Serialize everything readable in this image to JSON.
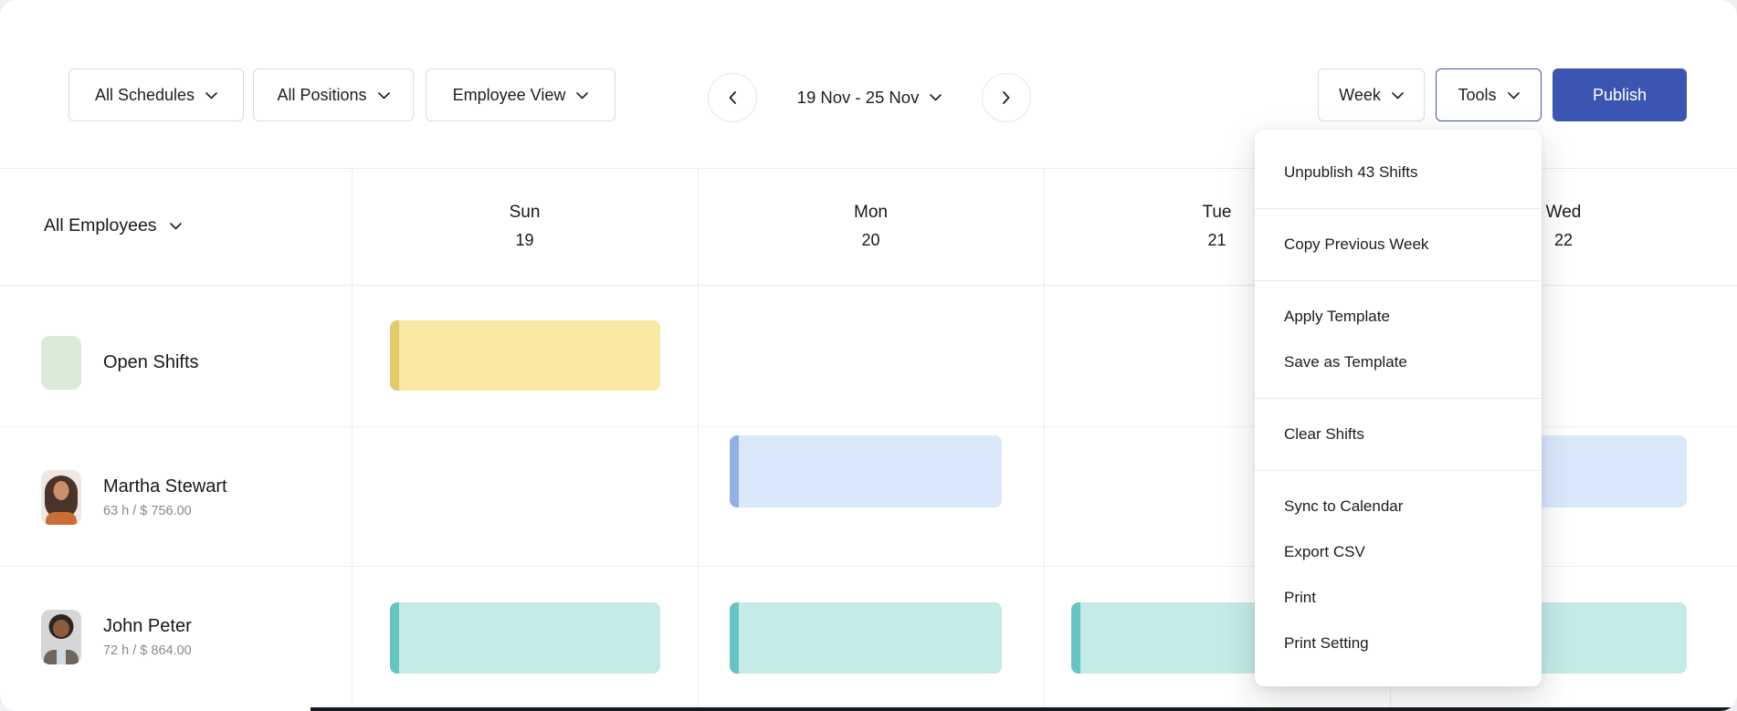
{
  "toolbar": {
    "filters": [
      {
        "id": "schedules",
        "label": "All Schedules"
      },
      {
        "id": "positions",
        "label": "All Positions"
      },
      {
        "id": "view",
        "label": "Employee View"
      }
    ],
    "date_range": "19 Nov - 25 Nov",
    "view_mode": "Week",
    "tools_label": "Tools",
    "publish_label": "Publish"
  },
  "tools_menu": {
    "groups": [
      {
        "items": [
          "Unpublish 43 Shifts"
        ]
      },
      {
        "items": [
          "Copy Previous Week"
        ]
      },
      {
        "items": [
          "Apply Template",
          "Save as Template"
        ]
      },
      {
        "items": [
          "Clear Shifts"
        ]
      },
      {
        "items": [
          "Sync to Calendar",
          "Export CSV",
          "Print",
          "Print Setting"
        ]
      }
    ]
  },
  "grid": {
    "employees_header": "All Employees",
    "days": [
      {
        "name": "Sun",
        "date": "19"
      },
      {
        "name": "Mon",
        "date": "20"
      },
      {
        "name": "Tue",
        "date": "21"
      },
      {
        "name": "Wed",
        "date": "22"
      }
    ],
    "rows": [
      {
        "name": "Open Shifts",
        "meta": "",
        "avatar": "green-tile",
        "shifts": [
          {
            "day": 0,
            "color": "yellow"
          }
        ]
      },
      {
        "name": "Martha Stewart",
        "meta": "63 h / $ 756.00",
        "avatar": "photo-woman",
        "shifts": [
          {
            "day": 1,
            "color": "blue"
          },
          {
            "day": 3,
            "color": "blue"
          }
        ]
      },
      {
        "name": "John Peter",
        "meta": "72 h / $ 864.00",
        "avatar": "photo-man",
        "shifts": [
          {
            "day": 0,
            "color": "teal"
          },
          {
            "day": 1,
            "color": "teal"
          },
          {
            "day": 2,
            "color": "teal"
          },
          {
            "day": 3,
            "color": "teal"
          }
        ]
      }
    ]
  },
  "colors": {
    "accent_blue": "#3d55b2",
    "open_shifts_tile": "#dcead9",
    "shift_yellow_fill": "#f8e8a1",
    "shift_yellow_accent": "#e2cb6e",
    "shift_blue_fill": "#dbe8fb",
    "shift_blue_accent": "#90b1e7",
    "shift_teal_fill": "#c5ebe8",
    "shift_teal_accent": "#65c5c0"
  }
}
